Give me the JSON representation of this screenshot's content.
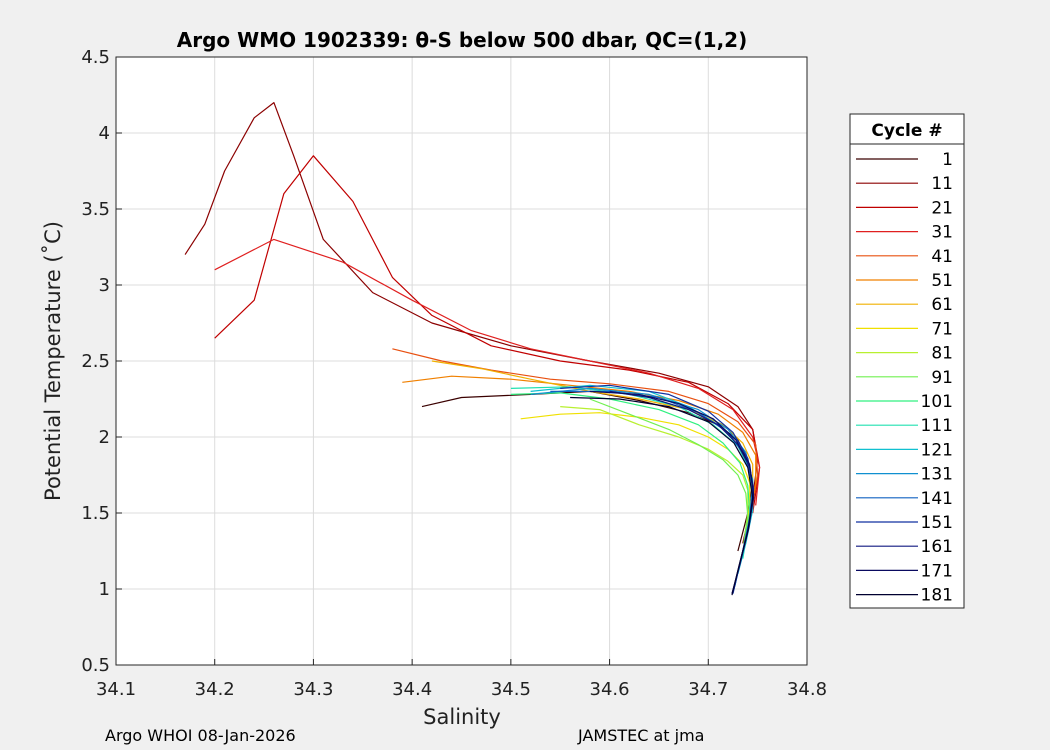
{
  "chart_data": {
    "type": "line",
    "title": "Argo WMO 1902339: θ-S below 500 dbar,  QC=(1,2)",
    "xlabel": "Salinity",
    "ylabel": "Potential Temperature (˚C)",
    "xlim": [
      34.1,
      34.8
    ],
    "ylim": [
      0.5,
      4.5
    ],
    "xticks": [
      "34.1",
      "34.2",
      "34.3",
      "34.4",
      "34.5",
      "34.6",
      "34.7",
      "34.8"
    ],
    "yticks": [
      "0.5",
      "1",
      "1.5",
      "2",
      "2.5",
      "3",
      "3.5",
      "4",
      "4.5"
    ],
    "grid": true,
    "legend": {
      "title": "Cycle #",
      "position": "right",
      "entries": [
        {
          "label": "1",
          "color": "#3a0000"
        },
        {
          "label": "11",
          "color": "#8b0000"
        },
        {
          "label": "21",
          "color": "#c00000"
        },
        {
          "label": "31",
          "color": "#e02020"
        },
        {
          "label": "41",
          "color": "#e85010"
        },
        {
          "label": "51",
          "color": "#f08000"
        },
        {
          "label": "61",
          "color": "#f0b000"
        },
        {
          "label": "71",
          "color": "#f0e000"
        },
        {
          "label": "81",
          "color": "#b8f030"
        },
        {
          "label": "91",
          "color": "#70f050"
        },
        {
          "label": "101",
          "color": "#30f080"
        },
        {
          "label": "111",
          "color": "#20e0b0"
        },
        {
          "label": "121",
          "color": "#10c0d0"
        },
        {
          "label": "131",
          "color": "#1090d0"
        },
        {
          "label": "141",
          "color": "#1060c0"
        },
        {
          "label": "151",
          "color": "#1030a0"
        },
        {
          "label": "161",
          "color": "#101880"
        },
        {
          "label": "171",
          "color": "#0a0a60"
        },
        {
          "label": "181",
          "color": "#000030"
        }
      ]
    },
    "series": [
      {
        "name": "1",
        "color": "#3a0000",
        "x": [
          34.41,
          34.45,
          34.52,
          34.58,
          34.63,
          34.68,
          34.71,
          34.73,
          34.74,
          34.745,
          34.74,
          34.73
        ],
        "y": [
          2.2,
          2.26,
          2.28,
          2.3,
          2.24,
          2.16,
          2.08,
          1.98,
          1.85,
          1.7,
          1.5,
          1.25
        ]
      },
      {
        "name": "11",
        "color": "#8b0000",
        "x": [
          34.17,
          34.19,
          34.21,
          34.24,
          34.26,
          34.28,
          34.31,
          34.36,
          34.42,
          34.5,
          34.58,
          34.65,
          34.7,
          34.73,
          34.745,
          34.75,
          34.745,
          34.735
        ],
        "y": [
          3.2,
          3.4,
          3.75,
          4.1,
          4.2,
          3.85,
          3.3,
          2.95,
          2.75,
          2.6,
          2.5,
          2.42,
          2.33,
          2.2,
          2.05,
          1.85,
          1.6,
          1.3
        ]
      },
      {
        "name": "21",
        "color": "#c00000",
        "x": [
          34.2,
          34.24,
          34.27,
          34.3,
          34.34,
          34.38,
          34.42,
          34.48,
          34.55,
          34.62,
          34.68,
          34.72,
          34.745,
          34.752,
          34.745
        ],
        "y": [
          2.65,
          2.9,
          3.6,
          3.85,
          3.55,
          3.05,
          2.8,
          2.6,
          2.5,
          2.44,
          2.36,
          2.22,
          2.05,
          1.8,
          1.5
        ]
      },
      {
        "name": "31",
        "color": "#e02020",
        "x": [
          34.2,
          34.26,
          34.33,
          34.4,
          34.46,
          34.52,
          34.58,
          34.64,
          34.69,
          34.725,
          34.745,
          34.752,
          34.748
        ],
        "y": [
          3.1,
          3.3,
          3.15,
          2.9,
          2.7,
          2.58,
          2.5,
          2.42,
          2.32,
          2.18,
          2.0,
          1.8,
          1.55
        ]
      },
      {
        "name": "41",
        "color": "#e85010",
        "x": [
          34.38,
          34.43,
          34.48,
          34.54,
          34.6,
          34.66,
          34.7,
          34.73,
          34.748,
          34.75,
          34.745
        ],
        "y": [
          2.58,
          2.5,
          2.44,
          2.38,
          2.35,
          2.3,
          2.22,
          2.1,
          1.95,
          1.75,
          1.55
        ]
      },
      {
        "name": "51",
        "color": "#f08000",
        "x": [
          34.39,
          34.44,
          34.5,
          34.56,
          34.62,
          34.67,
          34.71,
          34.735,
          34.748,
          34.748,
          34.742
        ],
        "y": [
          2.36,
          2.4,
          2.38,
          2.34,
          2.3,
          2.24,
          2.15,
          2.03,
          1.88,
          1.7,
          1.5
        ]
      },
      {
        "name": "61",
        "color": "#f0b000",
        "x": [
          34.42,
          34.47,
          34.52,
          34.58,
          34.63,
          34.68,
          34.715,
          34.735,
          34.745,
          34.745,
          34.74
        ],
        "y": [
          2.5,
          2.45,
          2.38,
          2.3,
          2.25,
          2.18,
          2.08,
          1.96,
          1.82,
          1.65,
          1.45
        ]
      },
      {
        "name": "71",
        "color": "#f0e000",
        "x": [
          34.51,
          34.55,
          34.59,
          34.63,
          34.67,
          34.7,
          34.72,
          34.735,
          34.742,
          34.742,
          34.738
        ],
        "y": [
          2.12,
          2.15,
          2.16,
          2.13,
          2.08,
          2.0,
          1.92,
          1.82,
          1.7,
          1.55,
          1.35
        ]
      },
      {
        "name": "81",
        "color": "#b8f030",
        "x": [
          34.55,
          34.59,
          34.63,
          34.67,
          34.7,
          34.72,
          34.735,
          34.74,
          34.74,
          34.736
        ],
        "y": [
          2.2,
          2.18,
          2.08,
          2.0,
          1.92,
          1.84,
          1.75,
          1.65,
          1.5,
          1.3
        ]
      },
      {
        "name": "91",
        "color": "#70f050",
        "x": [
          34.58,
          34.62,
          34.66,
          34.69,
          34.715,
          34.73,
          34.738,
          34.74,
          34.736
        ],
        "y": [
          2.25,
          2.15,
          2.05,
          1.95,
          1.85,
          1.75,
          1.63,
          1.48,
          1.3
        ]
      },
      {
        "name": "101",
        "color": "#30f080",
        "x": [
          34.5,
          34.55,
          34.6,
          34.65,
          34.69,
          34.715,
          34.732,
          34.74,
          34.742,
          34.738
        ],
        "y": [
          2.28,
          2.29,
          2.25,
          2.18,
          2.08,
          1.96,
          1.83,
          1.68,
          1.5,
          1.3
        ]
      },
      {
        "name": "111",
        "color": "#20e0b0",
        "x": [
          34.5,
          34.56,
          34.62,
          34.67,
          34.705,
          34.73,
          34.742,
          34.745,
          34.74,
          34.735
        ],
        "y": [
          2.32,
          2.33,
          2.28,
          2.2,
          2.08,
          1.94,
          1.78,
          1.6,
          1.4,
          1.2
        ]
      },
      {
        "name": "121",
        "color": "#10c0d0",
        "x": [
          34.52,
          34.58,
          34.64,
          34.68,
          34.715,
          34.735,
          34.745,
          34.745,
          34.738,
          34.73
        ],
        "y": [
          2.3,
          2.34,
          2.3,
          2.2,
          2.06,
          1.9,
          1.72,
          1.52,
          1.3,
          1.1
        ]
      },
      {
        "name": "131",
        "color": "#1090d0",
        "x": [
          34.52,
          34.58,
          34.64,
          34.69,
          34.72,
          34.738,
          34.745,
          34.742,
          34.735,
          34.727
        ],
        "y": [
          2.28,
          2.32,
          2.28,
          2.18,
          2.05,
          1.9,
          1.7,
          1.48,
          1.25,
          1.02
        ]
      },
      {
        "name": "141",
        "color": "#1060c0",
        "x": [
          34.54,
          34.6,
          34.65,
          34.69,
          34.72,
          34.738,
          34.745,
          34.742,
          34.734,
          34.726
        ],
        "y": [
          2.3,
          2.3,
          2.26,
          2.16,
          2.03,
          1.87,
          1.68,
          1.46,
          1.22,
          1.0
        ]
      },
      {
        "name": "151",
        "color": "#1030a0",
        "x": [
          34.55,
          34.6,
          34.66,
          34.7,
          34.725,
          34.74,
          34.746,
          34.742,
          34.733,
          34.725
        ],
        "y": [
          2.32,
          2.34,
          2.28,
          2.17,
          2.03,
          1.86,
          1.66,
          1.44,
          1.2,
          0.97
        ]
      },
      {
        "name": "161",
        "color": "#101880",
        "x": [
          34.6,
          34.64,
          34.68,
          34.71,
          34.73,
          34.742,
          34.746,
          34.74,
          34.732,
          34.724
        ],
        "y": [
          2.3,
          2.26,
          2.18,
          2.08,
          1.95,
          1.8,
          1.6,
          1.38,
          1.16,
          0.97
        ]
      },
      {
        "name": "171",
        "color": "#0a0a60",
        "x": [
          34.58,
          34.63,
          34.67,
          34.705,
          34.728,
          34.742,
          34.746,
          34.741,
          34.732,
          34.724
        ],
        "y": [
          2.3,
          2.28,
          2.22,
          2.12,
          1.98,
          1.82,
          1.62,
          1.4,
          1.17,
          0.97
        ]
      },
      {
        "name": "181",
        "color": "#000030",
        "x": [
          34.56,
          34.61,
          34.66,
          34.7,
          34.726,
          34.74,
          34.745,
          34.74,
          34.731,
          34.724
        ],
        "y": [
          2.26,
          2.25,
          2.2,
          2.1,
          1.96,
          1.8,
          1.6,
          1.38,
          1.15,
          0.96
        ]
      }
    ]
  },
  "footer": {
    "left": "Argo WHOI 08-Jan-2026",
    "right": "JAMSTEC at jma"
  }
}
